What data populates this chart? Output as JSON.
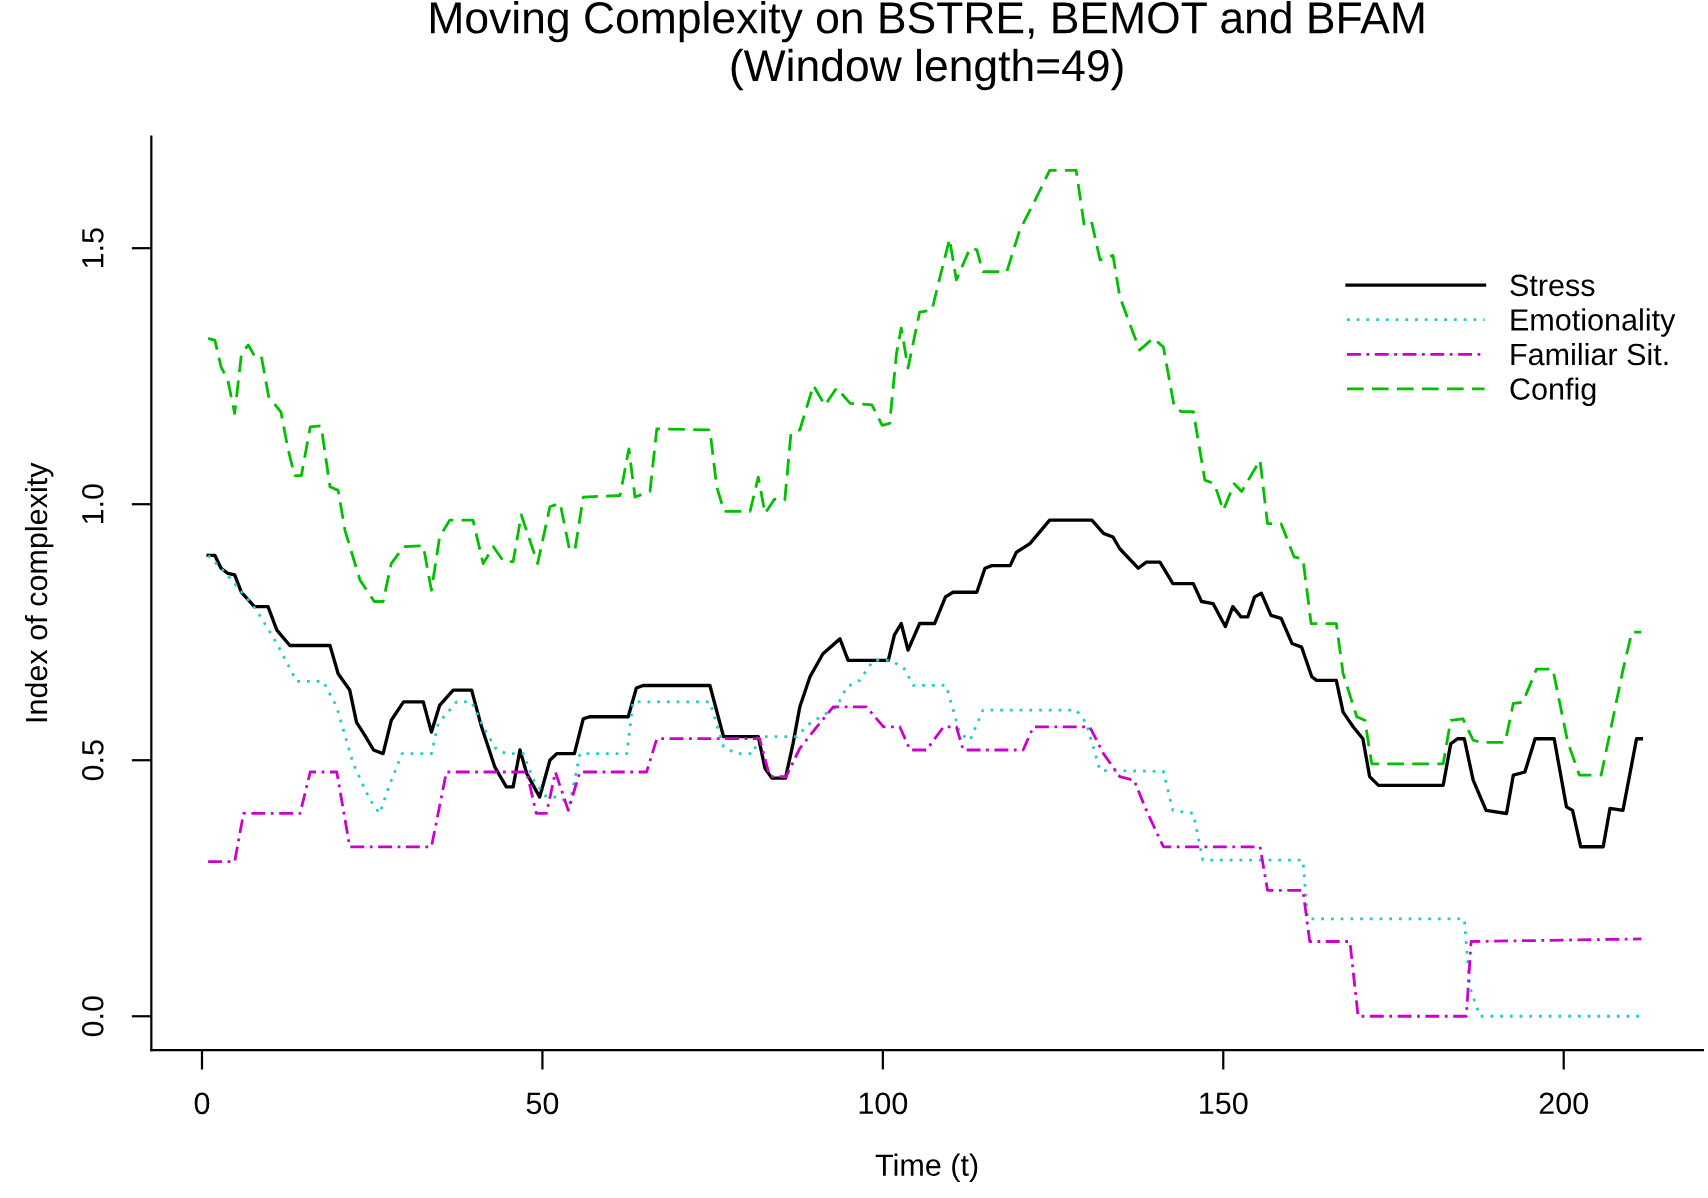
{
  "chart_data": {
    "type": "line",
    "title": "Moving Complexity on BSTRE, BEMOT and BFAM\n(Window length=49)",
    "xlabel": "Time (t)",
    "ylabel": "Index of complexity",
    "xlim": [
      -7.44,
      220.44
    ],
    "ylim": [
      -0.066,
      1.718
    ],
    "xticks": [
      0,
      50,
      100,
      150,
      200
    ],
    "yticks": [
      {
        "value": 0,
        "label": "0.0"
      },
      0.5,
      {
        "value": 1,
        "label": "1.0"
      },
      1.5
    ],
    "grid": false,
    "legend": "top right",
    "marker": "none",
    "series": [
      {
        "name": "Stress",
        "color": "#000000",
        "line_style": "solid",
        "x": [
          0.9,
          1.9,
          2.8,
          3.8,
          4.8,
          5.8,
          7.7,
          9.7,
          11,
          12.9,
          18.8,
          20,
          21.7,
          22.7,
          23.9,
          25.2,
          26.6,
          27.8,
          29.6,
          32.5,
          33.7,
          34.9,
          36.9,
          39.6,
          41,
          43,
          44.7,
          45.7,
          46.7,
          47.7,
          49.6,
          51.1,
          52.1,
          54.7,
          56,
          57,
          62.6,
          63.8,
          64.8,
          74.6,
          76.6,
          81.7,
          82.7,
          83.7,
          85.7,
          86.8,
          87.8,
          89.3,
          91.2,
          93.7,
          94.9,
          100.8,
          101.7,
          102.7,
          103.7,
          105.4,
          107.6,
          109.2,
          110.3,
          113.8,
          115,
          116,
          118.7,
          119.6,
          121.6,
          124.5,
          130.7,
          132.4,
          133.8,
          134.8,
          137.5,
          138.7,
          140.7,
          142.6,
          145.6,
          146.8,
          148.5,
          150.3,
          151.4,
          152.6,
          153.6,
          154.6,
          155.6,
          157,
          158.5,
          160.1,
          161.5,
          163,
          163.7,
          166.6,
          167.6,
          169.1,
          170.5,
          171.5,
          172.8,
          182.3,
          183.4,
          184.4,
          185.4,
          186.7,
          188.6,
          191.6,
          192.6,
          194.3,
          195.8,
          198.6,
          200.4,
          201.3,
          202.5,
          205.8,
          206.8,
          208.7,
          210.7,
          211.4
        ],
        "values": [
          0.9,
          0.9,
          0.875,
          0.865,
          0.862,
          0.828,
          0.8,
          0.8,
          0.754,
          0.724,
          0.724,
          0.669,
          0.637,
          0.574,
          0.549,
          0.52,
          0.513,
          0.578,
          0.614,
          0.614,
          0.555,
          0.607,
          0.637,
          0.637,
          0.568,
          0.487,
          0.448,
          0.448,
          0.52,
          0.474,
          0.428,
          0.5,
          0.513,
          0.513,
          0.581,
          0.585,
          0.585,
          0.641,
          0.646,
          0.646,
          0.546,
          0.546,
          0.484,
          0.465,
          0.465,
          0.532,
          0.604,
          0.663,
          0.708,
          0.737,
          0.695,
          0.695,
          0.745,
          0.767,
          0.715,
          0.767,
          0.767,
          0.819,
          0.828,
          0.828,
          0.875,
          0.88,
          0.88,
          0.906,
          0.923,
          0.969,
          0.969,
          0.943,
          0.936,
          0.913,
          0.875,
          0.887,
          0.887,
          0.845,
          0.845,
          0.81,
          0.806,
          0.761,
          0.8,
          0.78,
          0.78,
          0.819,
          0.826,
          0.783,
          0.777,
          0.728,
          0.721,
          0.663,
          0.656,
          0.656,
          0.594,
          0.565,
          0.542,
          0.468,
          0.451,
          0.451,
          0.532,
          0.542,
          0.542,
          0.461,
          0.402,
          0.396,
          0.471,
          0.477,
          0.542,
          0.542,
          0.409,
          0.402,
          0.331,
          0.331,
          0.406,
          0.402,
          0.542,
          0.542
        ]
      },
      {
        "name": "Emotionality",
        "color": "#22cccc",
        "line_style": "dotted",
        "x": [
          0.9,
          2.8,
          4.8,
          8,
          11,
          13.9,
          17.8,
          19.8,
          22.2,
          24.7,
          26.1,
          27.6,
          29.4,
          33.7,
          34.7,
          37.4,
          39.6,
          41.3,
          43.3,
          44.7,
          47.2,
          48.7,
          50.6,
          52.6,
          54,
          55.5,
          62.4,
          63.3,
          74.6,
          76.6,
          78.5,
          81,
          81.7,
          87.3,
          89.3,
          93.2,
          94.7,
          96.6,
          98.6,
          101,
          103,
          104.5,
          109.3,
          111.3,
          112.8,
          114.7,
          128.4,
          129.9,
          131.9,
          141.2,
          142.6,
          145.6,
          147,
          161.7,
          162.4,
          185.4,
          186.2,
          187.7,
          211.4
        ],
        "values": [
          0.9,
          0.875,
          0.845,
          0.793,
          0.728,
          0.654,
          0.654,
          0.604,
          0.493,
          0.422,
          0.396,
          0.454,
          0.513,
          0.513,
          0.572,
          0.614,
          0.614,
          0.565,
          0.52,
          0.513,
          0.513,
          0.461,
          0.428,
          0.428,
          0.413,
          0.513,
          0.513,
          0.614,
          0.614,
          0.526,
          0.513,
          0.513,
          0.546,
          0.546,
          0.572,
          0.604,
          0.643,
          0.656,
          0.695,
          0.695,
          0.682,
          0.646,
          0.646,
          0.553,
          0.539,
          0.598,
          0.598,
          0.572,
          0.48,
          0.478,
          0.402,
          0.396,
          0.305,
          0.305,
          0.19,
          0.19,
          0.057,
          0,
          0
        ]
      },
      {
        "name": "Familiar Sit.",
        "color": "#cc00cc",
        "line_style": "dashdot",
        "x": [
          0.9,
          4.8,
          6.1,
          14.4,
          15.9,
          19.8,
          21.7,
          33.7,
          35.9,
          47.7,
          49.1,
          50.6,
          51.9,
          53.8,
          55.5,
          65.3,
          66.8,
          81.9,
          83.4,
          85.8,
          87.8,
          90.3,
          92.7,
          97.6,
          100.1,
          102.5,
          104,
          106.4,
          108.9,
          110.8,
          111.8,
          120.6,
          122.1,
          130.4,
          132.4,
          134.8,
          136.9,
          138.7,
          141.2,
          155.4,
          156.5,
          161.7,
          162.7,
          168.6,
          169.8,
          185.7,
          186.4,
          211.4
        ],
        "values": [
          0.302,
          0.302,
          0.396,
          0.396,
          0.477,
          0.477,
          0.331,
          0.331,
          0.477,
          0.477,
          0.396,
          0.396,
          0.477,
          0.402,
          0.477,
          0.477,
          0.542,
          0.542,
          0.468,
          0.468,
          0.523,
          0.565,
          0.604,
          0.604,
          0.565,
          0.565,
          0.52,
          0.52,
          0.565,
          0.565,
          0.52,
          0.52,
          0.565,
          0.565,
          0.513,
          0.468,
          0.461,
          0.402,
          0.331,
          0.331,
          0.246,
          0.246,
          0.146,
          0.146,
          0,
          0,
          0.146,
          0.151
        ]
      },
      {
        "name": "Config",
        "color": "#00c000",
        "line_style": "dashed",
        "x": [
          0.9,
          1.9,
          2.8,
          3.8,
          4.8,
          5.8,
          6.8,
          7.7,
          8.7,
          9.8,
          11.6,
          12.6,
          13.6,
          14.6,
          15.9,
          17.5,
          18.8,
          20,
          21,
          23.2,
          25.3,
          26.6,
          27.8,
          29.6,
          32.5,
          33.7,
          34.9,
          36.4,
          39.8,
          41.3,
          42.8,
          44.3,
          45.7,
          46.9,
          49.3,
          51.1,
          52.6,
          54,
          54.8,
          56,
          61.4,
          62.7,
          63.6,
          65.8,
          66.8,
          74.6,
          75.6,
          76.7,
          80.5,
          81.7,
          82.7,
          84.1,
          85.6,
          86.5,
          87.8,
          89.8,
          91.5,
          93.2,
          95.2,
          98.4,
          99.9,
          101,
          102,
          102.7,
          103.7,
          105.4,
          107.2,
          108.4,
          109.8,
          110.8,
          112.8,
          113.8,
          114.7,
          118.2,
          120.1,
          122.6,
          124.5,
          128.4,
          129.6,
          130.7,
          131.9,
          133.8,
          134.8,
          137.7,
          139.7,
          141.2,
          142.8,
          143.8,
          145.6,
          147.3,
          148.7,
          150,
          151.6,
          152.7,
          155.4,
          156.5,
          158.5,
          160.4,
          161.7,
          162.9,
          166.6,
          167.6,
          169.6,
          170.8,
          171.8,
          182.3,
          183.4,
          185.2,
          186.7,
          187.9,
          191.4,
          192.6,
          194,
          196,
          198.4,
          200.6,
          202.3,
          205.5,
          208.7,
          210,
          211.4
        ],
        "values": [
          1.324,
          1.32,
          1.268,
          1.242,
          1.177,
          1.294,
          1.311,
          1.29,
          1.29,
          1.21,
          1.18,
          1.11,
          1.056,
          1.056,
          1.151,
          1.153,
          1.034,
          1.027,
          0.949,
          0.852,
          0.81,
          0.81,
          0.884,
          0.917,
          0.919,
          0.832,
          0.936,
          0.969,
          0.969,
          0.884,
          0.917,
          0.888,
          0.888,
          0.979,
          0.884,
          0.995,
          1.002,
          0.91,
          0.913,
          1.014,
          1.017,
          1.108,
          1.014,
          1.025,
          1.147,
          1.145,
          1.034,
          0.986,
          0.986,
          1.053,
          0.982,
          1.01,
          1.008,
          1.138,
          1.145,
          1.232,
          1.193,
          1.227,
          1.197,
          1.194,
          1.154,
          1.158,
          1.294,
          1.344,
          1.266,
          1.375,
          1.379,
          1.444,
          1.518,
          1.438,
          1.5,
          1.497,
          1.454,
          1.454,
          1.535,
          1.6,
          1.652,
          1.652,
          1.542,
          1.549,
          1.477,
          1.486,
          1.405,
          1.301,
          1.324,
          1.307,
          1.19,
          1.181,
          1.181,
          1.047,
          1.04,
          0.988,
          1.04,
          1.025,
          1.086,
          0.962,
          0.962,
          0.897,
          0.893,
          0.767,
          0.767,
          0.669,
          0.585,
          0.578,
          0.493,
          0.493,
          0.578,
          0.581,
          0.539,
          0.535,
          0.535,
          0.611,
          0.613,
          0.678,
          0.678,
          0.535,
          0.471,
          0.471,
          0.676,
          0.75,
          0.75
        ]
      }
    ]
  }
}
